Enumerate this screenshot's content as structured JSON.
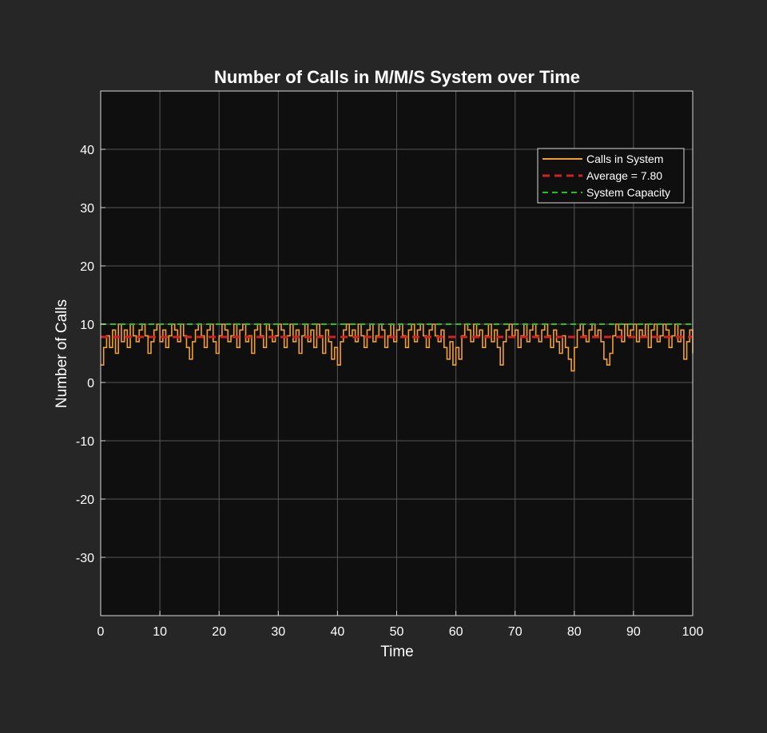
{
  "chart_data": {
    "type": "line",
    "title": "Number of Calls in M/M/S System over Time",
    "xlabel": "Time",
    "ylabel": "Number of Calls",
    "xlim": [
      0,
      100
    ],
    "ylim": [
      -40,
      50
    ],
    "xticks": [
      0,
      10,
      20,
      30,
      40,
      50,
      60,
      70,
      80,
      90,
      100
    ],
    "yticks": [
      -30,
      -20,
      -10,
      0,
      10,
      20,
      30,
      40
    ],
    "grid": true,
    "legend_position": "top-right",
    "series": [
      {
        "name": "Calls in System",
        "style": "step",
        "color": "#f0a030",
        "points": [
          [
            0,
            3
          ],
          [
            0.5,
            6
          ],
          [
            1,
            8
          ],
          [
            1.5,
            6
          ],
          [
            2,
            9
          ],
          [
            2.5,
            5
          ],
          [
            3,
            10
          ],
          [
            3.5,
            7
          ],
          [
            4,
            9
          ],
          [
            4.5,
            6
          ],
          [
            5,
            10
          ],
          [
            5.5,
            8
          ],
          [
            6,
            7
          ],
          [
            6.5,
            9
          ],
          [
            7,
            10
          ],
          [
            7.5,
            8
          ],
          [
            8,
            5
          ],
          [
            8.5,
            7
          ],
          [
            9,
            9
          ],
          [
            9.5,
            10
          ],
          [
            10,
            7
          ],
          [
            10.5,
            9
          ],
          [
            11,
            6
          ],
          [
            11.5,
            8
          ],
          [
            12,
            10
          ],
          [
            12.5,
            9
          ],
          [
            13,
            7
          ],
          [
            13.5,
            10
          ],
          [
            14,
            8
          ],
          [
            14.5,
            6
          ],
          [
            15,
            4
          ],
          [
            15.5,
            7
          ],
          [
            16,
            9
          ],
          [
            16.5,
            10
          ],
          [
            17,
            8
          ],
          [
            17.5,
            6
          ],
          [
            18,
            9
          ],
          [
            18.5,
            10
          ],
          [
            19,
            7
          ],
          [
            19.5,
            5
          ],
          [
            20,
            8
          ],
          [
            20.5,
            10
          ],
          [
            21,
            9
          ],
          [
            21.5,
            7
          ],
          [
            22,
            8
          ],
          [
            22.5,
            10
          ],
          [
            23,
            6
          ],
          [
            23.5,
            9
          ],
          [
            24,
            10
          ],
          [
            24.5,
            7
          ],
          [
            25,
            8
          ],
          [
            25.5,
            5
          ],
          [
            26,
            9
          ],
          [
            26.5,
            10
          ],
          [
            27,
            8
          ],
          [
            27.5,
            6
          ],
          [
            28,
            10
          ],
          [
            28.5,
            9
          ],
          [
            29,
            7
          ],
          [
            29.5,
            8
          ],
          [
            30,
            10
          ],
          [
            30.5,
            9
          ],
          [
            31,
            6
          ],
          [
            31.5,
            8
          ],
          [
            32,
            10
          ],
          [
            32.5,
            7
          ],
          [
            33,
            9
          ],
          [
            33.5,
            5
          ],
          [
            34,
            8
          ],
          [
            34.5,
            10
          ],
          [
            35,
            7
          ],
          [
            35.5,
            9
          ],
          [
            36,
            6
          ],
          [
            36.5,
            10
          ],
          [
            37,
            8
          ],
          [
            37.5,
            5
          ],
          [
            38,
            9
          ],
          [
            38.5,
            7
          ],
          [
            39,
            4
          ],
          [
            39.5,
            6
          ],
          [
            40,
            3
          ],
          [
            40.5,
            7
          ],
          [
            41,
            9
          ],
          [
            41.5,
            10
          ],
          [
            42,
            8
          ],
          [
            42.5,
            9
          ],
          [
            43,
            7
          ],
          [
            43.5,
            10
          ],
          [
            44,
            8
          ],
          [
            44.5,
            6
          ],
          [
            45,
            9
          ],
          [
            45.5,
            10
          ],
          [
            46,
            7
          ],
          [
            46.5,
            8
          ],
          [
            47,
            10
          ],
          [
            47.5,
            9
          ],
          [
            48,
            6
          ],
          [
            48.5,
            8
          ],
          [
            49,
            10
          ],
          [
            49.5,
            7
          ],
          [
            50,
            9
          ],
          [
            50.5,
            10
          ],
          [
            51,
            8
          ],
          [
            51.5,
            6
          ],
          [
            52,
            9
          ],
          [
            52.5,
            10
          ],
          [
            53,
            7
          ],
          [
            53.5,
            9
          ],
          [
            54,
            10
          ],
          [
            54.5,
            8
          ],
          [
            55,
            6
          ],
          [
            55.5,
            9
          ],
          [
            56,
            10
          ],
          [
            56.5,
            8
          ],
          [
            57,
            7
          ],
          [
            57.5,
            9
          ],
          [
            58,
            6
          ],
          [
            58.5,
            4
          ],
          [
            59,
            7
          ],
          [
            59.5,
            3
          ],
          [
            60,
            6
          ],
          [
            60.5,
            4
          ],
          [
            61,
            8
          ],
          [
            61.5,
            10
          ],
          [
            62,
            9
          ],
          [
            62.5,
            7
          ],
          [
            63,
            10
          ],
          [
            63.5,
            8
          ],
          [
            64,
            9
          ],
          [
            64.5,
            6
          ],
          [
            65,
            8
          ],
          [
            65.5,
            10
          ],
          [
            66,
            7
          ],
          [
            66.5,
            9
          ],
          [
            67,
            6
          ],
          [
            67.5,
            3
          ],
          [
            68,
            7
          ],
          [
            68.5,
            9
          ],
          [
            69,
            10
          ],
          [
            69.5,
            8
          ],
          [
            70,
            9
          ],
          [
            70.5,
            6
          ],
          [
            71,
            8
          ],
          [
            71.5,
            10
          ],
          [
            72,
            7
          ],
          [
            72.5,
            9
          ],
          [
            73,
            10
          ],
          [
            73.5,
            8
          ],
          [
            74,
            7
          ],
          [
            74.5,
            9
          ],
          [
            75,
            10
          ],
          [
            75.5,
            8
          ],
          [
            76,
            6
          ],
          [
            76.5,
            9
          ],
          [
            77,
            7
          ],
          [
            77.5,
            5
          ],
          [
            78,
            8
          ],
          [
            78.5,
            6
          ],
          [
            79,
            4
          ],
          [
            79.5,
            2
          ],
          [
            80,
            6
          ],
          [
            80.5,
            9
          ],
          [
            81,
            10
          ],
          [
            81.5,
            8
          ],
          [
            82,
            7
          ],
          [
            82.5,
            9
          ],
          [
            83,
            10
          ],
          [
            83.5,
            8
          ],
          [
            84,
            9
          ],
          [
            84.5,
            7
          ],
          [
            85,
            4
          ],
          [
            85.5,
            3
          ],
          [
            86,
            5
          ],
          [
            86.5,
            8
          ],
          [
            87,
            10
          ],
          [
            87.5,
            9
          ],
          [
            88,
            7
          ],
          [
            88.5,
            10
          ],
          [
            89,
            8
          ],
          [
            89.5,
            9
          ],
          [
            90,
            10
          ],
          [
            90.5,
            7
          ],
          [
            91,
            9
          ],
          [
            91.5,
            8
          ],
          [
            92,
            10
          ],
          [
            92.5,
            6
          ],
          [
            93,
            9
          ],
          [
            93.5,
            10
          ],
          [
            94,
            7
          ],
          [
            94.5,
            8
          ],
          [
            95,
            10
          ],
          [
            95.5,
            9
          ],
          [
            96,
            6
          ],
          [
            96.5,
            8
          ],
          [
            97,
            10
          ],
          [
            97.5,
            7
          ],
          [
            98,
            9
          ],
          [
            98.5,
            4
          ],
          [
            99,
            7
          ],
          [
            99.5,
            9
          ],
          [
            100,
            5
          ]
        ]
      },
      {
        "name": "Average = 7.80",
        "style": "dashed",
        "color": "#d42020",
        "value": 7.8
      },
      {
        "name": "System Capacity",
        "style": "dashed",
        "color": "#22c022",
        "value": 10
      }
    ]
  }
}
